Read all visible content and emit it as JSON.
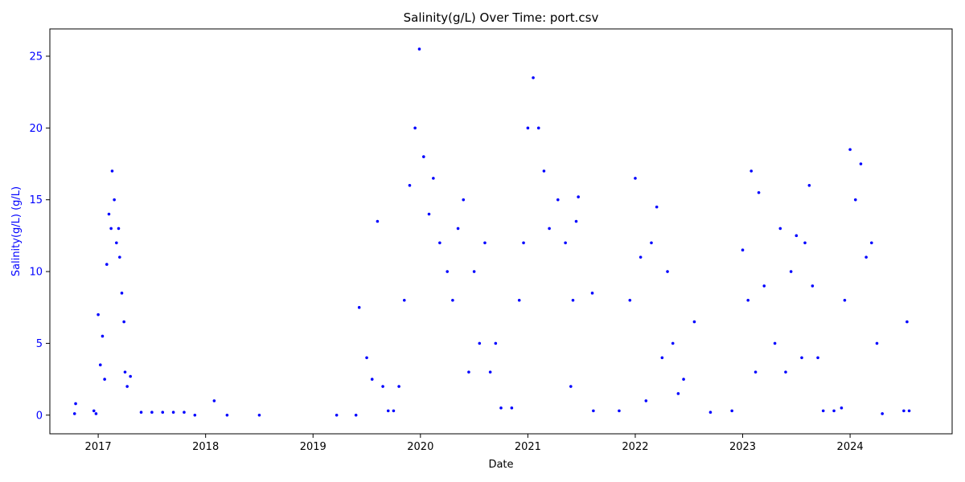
{
  "chart_data": {
    "type": "scatter",
    "title": "Salinity(g/L) Over Time: port.csv",
    "xlabel": "Date",
    "ylabel": "Salinity(g/L) (g/L)",
    "xlim": [
      2016.55,
      2024.95
    ],
    "ylim": [
      -1.3,
      26.9
    ],
    "x_ticks": [
      2017,
      2018,
      2019,
      2020,
      2021,
      2022,
      2023,
      2024
    ],
    "x_tick_labels": [
      "2017",
      "2018",
      "2019",
      "2020",
      "2021",
      "2022",
      "2023",
      "2024"
    ],
    "y_ticks": [
      0,
      5,
      10,
      15,
      20,
      25
    ],
    "y_tick_labels": [
      "0",
      "5",
      "10",
      "15",
      "20",
      "25"
    ],
    "grid": false,
    "legend": "none",
    "series": [
      {
        "color": "#0000ff",
        "marker": "dot",
        "points": [
          [
            2016.78,
            0.1
          ],
          [
            2016.79,
            0.8
          ],
          [
            2016.96,
            0.3
          ],
          [
            2016.98,
            0.1
          ],
          [
            2017.0,
            7.0
          ],
          [
            2017.02,
            3.5
          ],
          [
            2017.04,
            5.5
          ],
          [
            2017.06,
            2.5
          ],
          [
            2017.08,
            10.5
          ],
          [
            2017.1,
            14.0
          ],
          [
            2017.12,
            13.0
          ],
          [
            2017.13,
            17.0
          ],
          [
            2017.15,
            15.0
          ],
          [
            2017.17,
            12.0
          ],
          [
            2017.19,
            13.0
          ],
          [
            2017.2,
            11.0
          ],
          [
            2017.22,
            8.5
          ],
          [
            2017.24,
            6.5
          ],
          [
            2017.25,
            3.0
          ],
          [
            2017.27,
            2.0
          ],
          [
            2017.3,
            2.7
          ],
          [
            2017.4,
            0.2
          ],
          [
            2017.5,
            0.2
          ],
          [
            2017.6,
            0.2
          ],
          [
            2017.7,
            0.2
          ],
          [
            2017.8,
            0.2
          ],
          [
            2017.9,
            0.0
          ],
          [
            2018.08,
            1.0
          ],
          [
            2018.2,
            0.0
          ],
          [
            2018.5,
            0.0
          ],
          [
            2019.22,
            0.0
          ],
          [
            2019.4,
            0.0
          ],
          [
            2019.43,
            7.5
          ],
          [
            2019.5,
            4.0
          ],
          [
            2019.55,
            2.5
          ],
          [
            2019.6,
            13.5
          ],
          [
            2019.65,
            2.0
          ],
          [
            2019.7,
            0.3
          ],
          [
            2019.75,
            0.3
          ],
          [
            2019.8,
            2.0
          ],
          [
            2019.85,
            8.0
          ],
          [
            2019.9,
            16.0
          ],
          [
            2019.95,
            20.0
          ],
          [
            2019.99,
            25.5
          ],
          [
            2020.03,
            18.0
          ],
          [
            2020.08,
            14.0
          ],
          [
            2020.12,
            16.5
          ],
          [
            2020.18,
            12.0
          ],
          [
            2020.25,
            10.0
          ],
          [
            2020.3,
            8.0
          ],
          [
            2020.35,
            13.0
          ],
          [
            2020.4,
            15.0
          ],
          [
            2020.45,
            3.0
          ],
          [
            2020.5,
            10.0
          ],
          [
            2020.55,
            5.0
          ],
          [
            2020.6,
            12.0
          ],
          [
            2020.65,
            3.0
          ],
          [
            2020.7,
            5.0
          ],
          [
            2020.75,
            0.5
          ],
          [
            2020.85,
            0.5
          ],
          [
            2020.92,
            8.0
          ],
          [
            2020.96,
            12.0
          ],
          [
            2021.0,
            20.0
          ],
          [
            2021.05,
            23.5
          ],
          [
            2021.1,
            20.0
          ],
          [
            2021.15,
            17.0
          ],
          [
            2021.2,
            13.0
          ],
          [
            2021.28,
            15.0
          ],
          [
            2021.35,
            12.0
          ],
          [
            2021.4,
            2.0
          ],
          [
            2021.42,
            8.0
          ],
          [
            2021.45,
            13.5
          ],
          [
            2021.47,
            15.2
          ],
          [
            2021.6,
            8.5
          ],
          [
            2021.61,
            0.3
          ],
          [
            2021.85,
            0.3
          ],
          [
            2021.95,
            8.0
          ],
          [
            2022.0,
            16.5
          ],
          [
            2022.05,
            11.0
          ],
          [
            2022.1,
            1.0
          ],
          [
            2022.15,
            12.0
          ],
          [
            2022.2,
            14.5
          ],
          [
            2022.25,
            4.0
          ],
          [
            2022.3,
            10.0
          ],
          [
            2022.35,
            5.0
          ],
          [
            2022.4,
            1.5
          ],
          [
            2022.45,
            2.5
          ],
          [
            2022.55,
            6.5
          ],
          [
            2022.7,
            0.2
          ],
          [
            2022.9,
            0.3
          ],
          [
            2023.0,
            11.5
          ],
          [
            2023.05,
            8.0
          ],
          [
            2023.08,
            17.0
          ],
          [
            2023.12,
            3.0
          ],
          [
            2023.15,
            15.5
          ],
          [
            2023.2,
            9.0
          ],
          [
            2023.3,
            5.0
          ],
          [
            2023.35,
            13.0
          ],
          [
            2023.4,
            3.0
          ],
          [
            2023.45,
            10.0
          ],
          [
            2023.5,
            12.5
          ],
          [
            2023.55,
            4.0
          ],
          [
            2023.58,
            12.0
          ],
          [
            2023.62,
            16.0
          ],
          [
            2023.65,
            9.0
          ],
          [
            2023.7,
            4.0
          ],
          [
            2023.75,
            0.3
          ],
          [
            2023.85,
            0.3
          ],
          [
            2023.92,
            0.5
          ],
          [
            2023.95,
            8.0
          ],
          [
            2024.0,
            18.5
          ],
          [
            2024.05,
            15.0
          ],
          [
            2024.1,
            17.5
          ],
          [
            2024.15,
            11.0
          ],
          [
            2024.2,
            12.0
          ],
          [
            2024.25,
            5.0
          ],
          [
            2024.3,
            0.1
          ],
          [
            2024.5,
            0.3
          ],
          [
            2024.53,
            6.5
          ],
          [
            2024.55,
            0.3
          ]
        ]
      }
    ]
  }
}
